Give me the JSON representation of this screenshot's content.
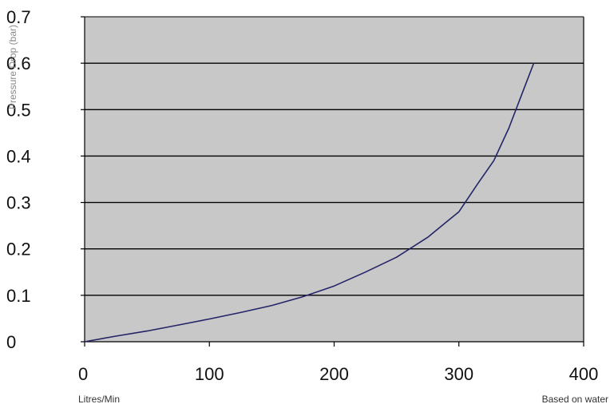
{
  "chart_data": {
    "type": "line",
    "title": "",
    "ylabel": "Pressure Drop (bar)",
    "xlabel": "Litres/Min",
    "note": "Based on water",
    "xlim": [
      0,
      400
    ],
    "ylim": [
      0,
      0.7
    ],
    "xticks": [
      0,
      100,
      200,
      300,
      400
    ],
    "xtick_labels": [
      "0",
      "100",
      "200",
      "300",
      "400"
    ],
    "yticks": [
      0,
      0.1,
      0.2,
      0.3,
      0.4,
      0.5,
      0.6,
      0.7
    ],
    "ytick_labels": [
      "0",
      "0.1",
      "0.2",
      "0.3",
      "0.4",
      "0.5",
      "0.6",
      "0.7"
    ],
    "grid": "horizontal",
    "colors": {
      "plot_bg": "#c8c8c8",
      "line": "#232468",
      "grid": "#000000"
    },
    "series": [
      {
        "x": [
          0,
          25,
          50,
          75,
          100,
          125,
          150,
          175,
          200,
          225,
          250,
          275,
          290,
          300,
          315,
          328,
          340,
          350,
          360
        ],
        "y": [
          0,
          0.012,
          0.023,
          0.036,
          0.049,
          0.063,
          0.078,
          0.097,
          0.12,
          0.15,
          0.182,
          0.225,
          0.258,
          0.28,
          0.34,
          0.39,
          0.46,
          0.53,
          0.6
        ]
      }
    ]
  }
}
